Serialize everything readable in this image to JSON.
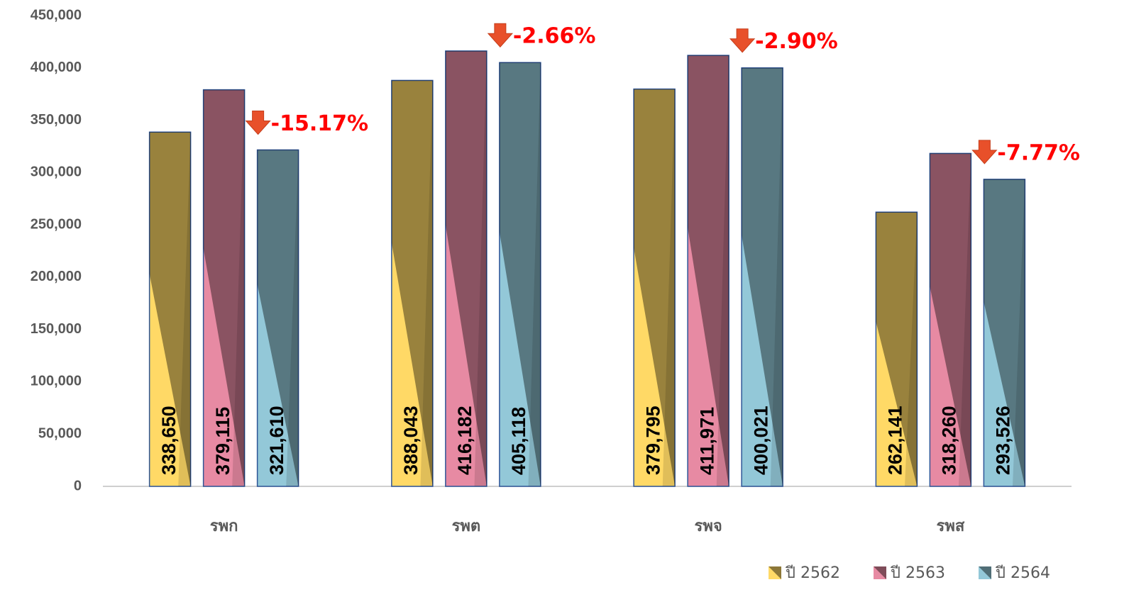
{
  "chart_data": {
    "type": "bar",
    "categories": [
      "รพก",
      "รพต",
      "รพจ",
      "รพส"
    ],
    "series": [
      {
        "name": "ปี 2562",
        "color": "#ffd966",
        "values": [
          338650,
          388043,
          379795,
          262141
        ],
        "value_labels": [
          "338,650",
          "388,043",
          "379,795",
          "262,141"
        ]
      },
      {
        "name": "ปี 2563",
        "color": "#e78aa3",
        "values": [
          379115,
          416182,
          411971,
          318260
        ],
        "value_labels": [
          "379,115",
          "416,182",
          "411,971",
          "318,260"
        ]
      },
      {
        "name": "ปี 2564",
        "color": "#93c8d8",
        "values": [
          321610,
          405118,
          400021,
          293526
        ],
        "value_labels": [
          "321,610",
          "405,118",
          "400,021",
          "293,526"
        ]
      }
    ],
    "annotations": [
      "-15.17%",
      "-2.66%",
      "-2.90%",
      "-7.77%"
    ],
    "ylim": [
      0,
      450000
    ],
    "yticks": [
      0,
      {
        "value": 50000,
        "label": "50,000"
      },
      {
        "value": 100000,
        "label": "100,000"
      },
      {
        "value": 150000,
        "label": "150,000"
      },
      {
        "value": 200000,
        "label": "200,000"
      },
      {
        "value": 250000,
        "label": "250,000"
      },
      {
        "value": 300000,
        "label": "300,000"
      },
      {
        "value": 350000,
        "label": "350,000"
      },
      {
        "value": 400000,
        "label": "400,000"
      },
      {
        "value": 450000,
        "label": "450,000"
      }
    ],
    "grid": false,
    "legend": "bottom-right"
  }
}
